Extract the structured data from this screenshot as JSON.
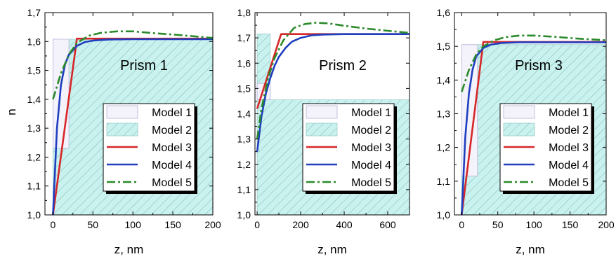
{
  "ylabel": "n",
  "legend_items": [
    {
      "label": "Model 1",
      "kind": "box",
      "fill": "#f4f2fb"
    },
    {
      "label": "Model 2",
      "kind": "hatch",
      "fill": "#c9f2ef"
    },
    {
      "label": "Model 3",
      "kind": "line",
      "color": "#d62728"
    },
    {
      "label": "Model 4",
      "kind": "line",
      "color": "#1f3fbf"
    },
    {
      "label": "Model 5",
      "kind": "dashdot",
      "color": "#2a8a2a"
    }
  ],
  "colors": {
    "model1": "#f4f2fb",
    "model2": "#c9f2ef",
    "model3": "#d62728",
    "model4": "#1f3fbf",
    "model5": "#2a8a2a",
    "hatch": "#7fb6b3"
  },
  "chart_data": [
    {
      "type": "line",
      "title": "Prism 1",
      "xlabel": "z, nm",
      "ylabel": "n",
      "xlim": [
        -10,
        200
      ],
      "ylim": [
        1.0,
        1.7
      ],
      "xticks": [
        0,
        50,
        100,
        150,
        200
      ],
      "yticks": [
        1.0,
        1.1,
        1.2,
        1.3,
        1.4,
        1.5,
        1.6,
        1.7
      ],
      "ytick_labels": [
        "1,0",
        "1,1",
        "1,2",
        "1,3",
        "1,4",
        "1,5",
        "1,6",
        "1,7"
      ],
      "model1": [
        [
          0,
          1.608
        ],
        [
          20,
          1.608
        ],
        [
          20,
          1.23
        ],
        [
          0,
          1.23
        ]
      ],
      "model2": [
        [
          20,
          1.608
        ],
        [
          200,
          1.608
        ],
        [
          200,
          1.0
        ],
        [
          0,
          1.0
        ],
        [
          0,
          1.23
        ],
        [
          20,
          1.23
        ]
      ],
      "series": [
        {
          "name": "Model 3",
          "style": "solid",
          "points": [
            [
              0,
              1.0
            ],
            [
              30,
              1.61
            ],
            [
              200,
              1.61
            ]
          ]
        },
        {
          "name": "Model 4",
          "style": "solid",
          "points": [
            [
              0,
              1.0
            ],
            [
              5,
              1.3
            ],
            [
              10,
              1.45
            ],
            [
              15,
              1.52
            ],
            [
              20,
              1.555
            ],
            [
              30,
              1.585
            ],
            [
              40,
              1.598
            ],
            [
              50,
              1.603
            ],
            [
              70,
              1.607
            ],
            [
              100,
              1.608
            ],
            [
              200,
              1.608
            ]
          ]
        },
        {
          "name": "Model 5",
          "style": "dashdot",
          "points": [
            [
              0,
              1.4
            ],
            [
              10,
              1.49
            ],
            [
              20,
              1.555
            ],
            [
              30,
              1.595
            ],
            [
              45,
              1.62
            ],
            [
              60,
              1.63
            ],
            [
              80,
              1.635
            ],
            [
              100,
              1.635
            ],
            [
              130,
              1.628
            ],
            [
              160,
              1.622
            ],
            [
              200,
              1.612
            ]
          ]
        }
      ]
    },
    {
      "type": "line",
      "title": "Prism 2",
      "xlabel": "z, nm",
      "ylabel": "",
      "xlim": [
        -10,
        700
      ],
      "ylim": [
        1.0,
        1.8
      ],
      "xticks": [
        0,
        200,
        400,
        600
      ],
      "yticks": [
        1.0,
        1.1,
        1.2,
        1.3,
        1.4,
        1.5,
        1.6,
        1.7,
        1.8
      ],
      "ytick_labels": [
        "1,0",
        "1,1",
        "1,2",
        "1,3",
        "1,4",
        "1,5",
        "1,6",
        "1,7",
        "1,8"
      ],
      "model1": [
        [
          0,
          1.52
        ],
        [
          60,
          1.52
        ],
        [
          60,
          1.455
        ],
        [
          0,
          1.455
        ]
      ],
      "model2": [
        [
          0,
          1.0
        ],
        [
          700,
          1.0
        ],
        [
          700,
          1.455
        ],
        [
          60,
          1.455
        ],
        [
          60,
          1.715
        ],
        [
          0,
          1.715
        ]
      ],
      "series": [
        {
          "name": "Model 3",
          "style": "solid",
          "points": [
            [
              0,
              1.42
            ],
            [
              110,
              1.715
            ],
            [
              700,
              1.715
            ]
          ]
        },
        {
          "name": "Model 4",
          "style": "solid",
          "points": [
            [
              0,
              1.25
            ],
            [
              20,
              1.39
            ],
            [
              40,
              1.48
            ],
            [
              60,
              1.54
            ],
            [
              80,
              1.59
            ],
            [
              100,
              1.625
            ],
            [
              130,
              1.66
            ],
            [
              160,
              1.685
            ],
            [
              200,
              1.7
            ],
            [
              250,
              1.71
            ],
            [
              300,
              1.713
            ],
            [
              400,
              1.715
            ],
            [
              700,
              1.715
            ]
          ]
        },
        {
          "name": "Model 5",
          "style": "dashdot",
          "points": [
            [
              0,
              1.3
            ],
            [
              20,
              1.42
            ],
            [
              50,
              1.54
            ],
            [
              80,
              1.62
            ],
            [
              120,
              1.69
            ],
            [
              170,
              1.74
            ],
            [
              220,
              1.755
            ],
            [
              270,
              1.76
            ],
            [
              330,
              1.757
            ],
            [
              400,
              1.748
            ],
            [
              500,
              1.737
            ],
            [
              600,
              1.728
            ],
            [
              700,
              1.72
            ]
          ]
        }
      ]
    },
    {
      "type": "line",
      "title": "Prism 3",
      "xlabel": "z, nm",
      "ylabel": "",
      "xlim": [
        -10,
        200
      ],
      "ylim": [
        1.0,
        1.6
      ],
      "xticks": [
        0,
        50,
        100,
        150,
        200
      ],
      "yticks": [
        1.0,
        1.1,
        1.2,
        1.3,
        1.4,
        1.5,
        1.6
      ],
      "ytick_labels": [
        "1,0",
        "1,1",
        "1,2",
        "1,3",
        "1,4",
        "1,5",
        "1,6"
      ],
      "model1": [
        [
          0,
          1.505
        ],
        [
          22,
          1.505
        ],
        [
          22,
          1.115
        ],
        [
          0,
          1.115
        ]
      ],
      "model2": [
        [
          22,
          1.505
        ],
        [
          200,
          1.505
        ],
        [
          200,
          1.0
        ],
        [
          0,
          1.0
        ],
        [
          0,
          1.115
        ],
        [
          22,
          1.115
        ]
      ],
      "series": [
        {
          "name": "Model 3",
          "style": "solid",
          "points": [
            [
              0,
              1.0
            ],
            [
              30,
              1.513
            ],
            [
              200,
              1.513
            ]
          ]
        },
        {
          "name": "Model 4",
          "style": "solid",
          "points": [
            [
              0,
              1.0
            ],
            [
              5,
              1.23
            ],
            [
              10,
              1.36
            ],
            [
              15,
              1.43
            ],
            [
              20,
              1.47
            ],
            [
              30,
              1.495
            ],
            [
              40,
              1.505
            ],
            [
              55,
              1.51
            ],
            [
              80,
              1.512
            ],
            [
              200,
              1.512
            ]
          ]
        },
        {
          "name": "Model 5",
          "style": "dashdot",
          "points": [
            [
              0,
              1.365
            ],
            [
              10,
              1.43
            ],
            [
              20,
              1.475
            ],
            [
              30,
              1.5
            ],
            [
              45,
              1.518
            ],
            [
              60,
              1.527
            ],
            [
              80,
              1.532
            ],
            [
              100,
              1.532
            ],
            [
              130,
              1.528
            ],
            [
              160,
              1.523
            ],
            [
              200,
              1.518
            ]
          ]
        }
      ]
    }
  ]
}
